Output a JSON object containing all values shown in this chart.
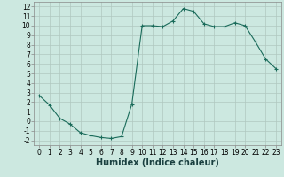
{
  "x": [
    0,
    1,
    2,
    3,
    4,
    5,
    6,
    7,
    8,
    9,
    10,
    11,
    12,
    13,
    14,
    15,
    16,
    17,
    18,
    19,
    20,
    21,
    22,
    23
  ],
  "y": [
    2.7,
    1.7,
    0.3,
    -0.3,
    -1.2,
    -1.5,
    -1.7,
    -1.8,
    -1.6,
    1.8,
    10.0,
    10.0,
    9.9,
    10.5,
    11.8,
    11.5,
    10.2,
    9.9,
    9.9,
    10.3,
    10.0,
    8.3,
    6.5,
    5.5
  ],
  "line_color": "#1a6b5a",
  "marker": "+",
  "marker_size": 3,
  "background_color": "#cce8e0",
  "grid_color": "#b0c8c0",
  "xlabel": "Humidex (Indice chaleur)",
  "xlabel_fontsize": 7,
  "yticks": [
    -2,
    -1,
    0,
    1,
    2,
    3,
    4,
    5,
    6,
    7,
    8,
    9,
    10,
    11,
    12
  ],
  "xticks": [
    0,
    1,
    2,
    3,
    4,
    5,
    6,
    7,
    8,
    9,
    10,
    11,
    12,
    13,
    14,
    15,
    16,
    17,
    18,
    19,
    20,
    21,
    22,
    23
  ],
  "ylim": [
    -2.5,
    12.5
  ],
  "xlim": [
    -0.5,
    23.5
  ],
  "tick_fontsize": 5.5,
  "spine_color": "#888888"
}
